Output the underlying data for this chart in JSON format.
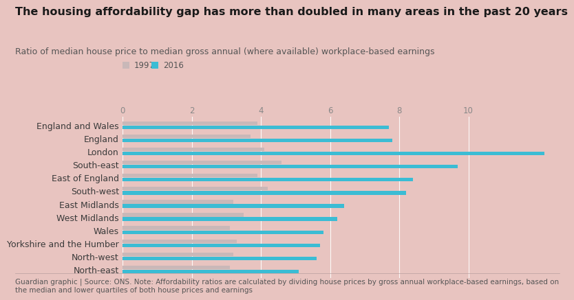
{
  "title": "The housing affordability gap has more than doubled in many areas in the past 20 years",
  "subtitle": "Ratio of median house price to median gross annual (where available) workplace-based earnings",
  "footnote": "Guardian graphic | Source: ONS. Note: Affordability ratios are calculated by dividing house prices by gross annual workplace-based earnings, based on\nthe median and lower quartiles of both house prices and earnings",
  "categories": [
    "England and Wales",
    "England",
    "London",
    "South-east",
    "East of England",
    "South-west",
    "East Midlands",
    "West Midlands",
    "Wales",
    "Yorkshire and the Humber",
    "North-west",
    "North-east"
  ],
  "values_1997": [
    3.9,
    3.7,
    4.1,
    4.6,
    3.9,
    4.2,
    3.2,
    3.5,
    3.1,
    3.3,
    3.2,
    3.1
  ],
  "values_2016": [
    7.7,
    7.8,
    12.2,
    9.7,
    8.4,
    8.2,
    6.4,
    6.2,
    5.8,
    5.7,
    5.6,
    5.1
  ],
  "color_1997": "#c9b8b8",
  "color_2016": "#3bbcd4",
  "background_color": "#e8c4c0",
  "xlim": [
    0,
    12.5
  ],
  "xticks": [
    0,
    2,
    4,
    6,
    8,
    10
  ],
  "bar_height": 0.28,
  "bar_gap": 0.04,
  "legend_1997": "1997",
  "legend_2016": "2016",
  "title_fontsize": 11.5,
  "subtitle_fontsize": 9,
  "footnote_fontsize": 7.5,
  "tick_fontsize": 8.5,
  "label_fontsize": 9
}
